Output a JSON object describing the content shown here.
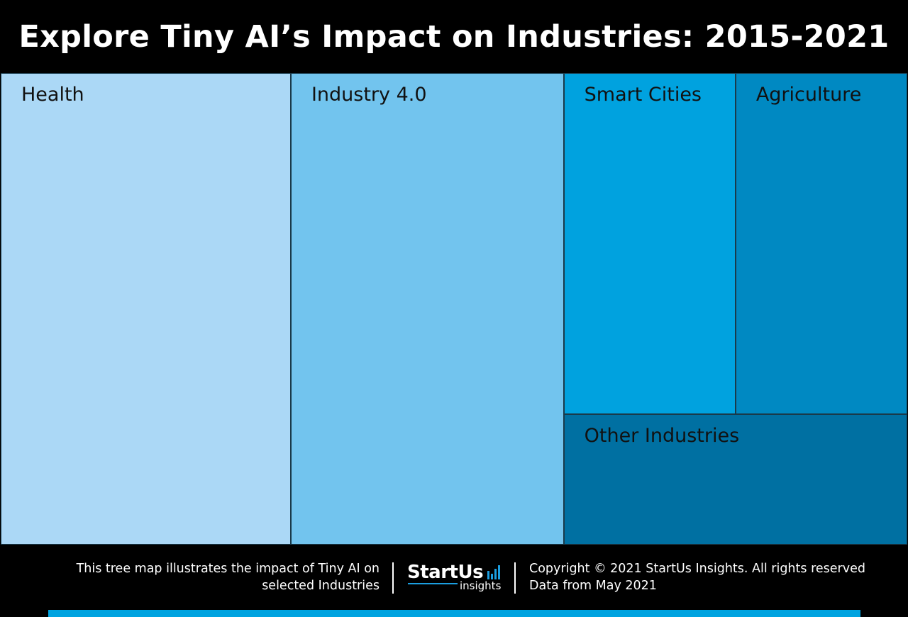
{
  "header": {
    "title": "Explore Tiny AI’s Impact on Industries: 2015-2021"
  },
  "chart_data": {
    "type": "treemap",
    "title": "Explore Tiny AI’s Impact on Industries: 2015-2021",
    "items": [
      {
        "label": "Health",
        "value": 32,
        "color": "#abd8f6"
      },
      {
        "label": "Industry 4.0",
        "value": 30.1,
        "color": "#72c4ee"
      },
      {
        "label": "Smart Cities",
        "value": 13.7,
        "color": "#00a2df"
      },
      {
        "label": "Agriculture",
        "value": 13.7,
        "color": "#0089c2"
      },
      {
        "label": "Other Industries",
        "value": 10.5,
        "color": "#0070a2"
      }
    ]
  },
  "footer": {
    "description_line1": "This tree map illustrates the impact of Tiny AI on",
    "description_line2": "selected Industries",
    "logo_text": "StartUs",
    "logo_subtext": "insights",
    "copyright": "Copyright © 2021 StartUs Insights. All rights reserved",
    "data_note": "Data from May 2021",
    "accent_color": "#00a3e0"
  }
}
